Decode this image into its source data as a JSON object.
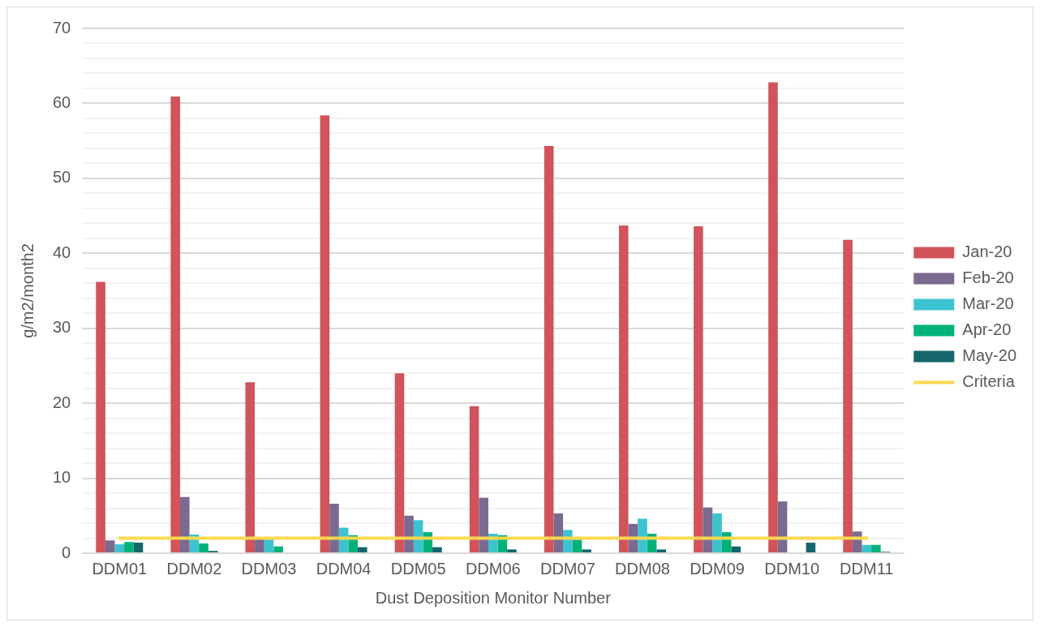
{
  "chart_data": {
    "type": "bar",
    "xlabel": "Dust Deposition Monitor Number",
    "ylabel": "g/m2/month2",
    "categories": [
      "DDM01",
      "DDM02",
      "DDM03",
      "DDM04",
      "DDM05",
      "DDM06",
      "DDM07",
      "DDM08",
      "DDM09",
      "DDM10",
      "DDM11"
    ],
    "series": [
      {
        "name": "Jan-20",
        "color": "#d0545a",
        "values": [
          36.2,
          60.9,
          22.8,
          58.4,
          24.0,
          19.6,
          54.3,
          43.7,
          43.6,
          62.8,
          41.8
        ]
      },
      {
        "name": "Feb-20",
        "color": "#7a6a90",
        "values": [
          1.7,
          7.5,
          1.9,
          6.6,
          5.0,
          7.4,
          5.3,
          3.9,
          6.1,
          6.9,
          2.9
        ]
      },
      {
        "name": "Mar-20",
        "color": "#3dc3cf",
        "values": [
          1.2,
          2.5,
          1.9,
          3.4,
          4.4,
          2.6,
          3.1,
          4.6,
          5.3,
          null,
          1.1
        ]
      },
      {
        "name": "Apr-20",
        "color": "#00b27a",
        "values": [
          1.5,
          1.3,
          0.9,
          2.4,
          2.8,
          2.4,
          1.8,
          2.6,
          2.8,
          null,
          1.1
        ]
      },
      {
        "name": "May-20",
        "color": "#14666c",
        "values": [
          1.4,
          0.3,
          null,
          0.8,
          0.8,
          0.5,
          0.5,
          0.5,
          0.9,
          1.4,
          0.2
        ]
      },
      {
        "name": "Criteria",
        "type": "line",
        "color": "#ffd84f",
        "marker": "none",
        "values": [
          2,
          2,
          2,
          2,
          2,
          2,
          2,
          2,
          2,
          2,
          2
        ]
      }
    ],
    "ylim": [
      0,
      70
    ],
    "yticks": [
      0,
      {
        "value": 2,
        "label": null
      },
      {
        "value": 4,
        "label": null
      },
      {
        "value": 6,
        "label": null
      },
      {
        "value": 8,
        "label": null
      },
      10,
      {
        "value": 12,
        "label": null
      },
      {
        "value": 14,
        "label": null
      },
      {
        "value": 16,
        "label": null
      },
      {
        "value": 18,
        "label": null
      },
      20,
      {
        "value": 22,
        "label": null
      },
      {
        "value": 24,
        "label": null
      },
      {
        "value": 26,
        "label": null
      },
      {
        "value": 28,
        "label": null
      },
      30,
      {
        "value": 32,
        "label": null
      },
      {
        "value": 34,
        "label": null
      },
      {
        "value": 36,
        "label": null
      },
      {
        "value": 38,
        "label": null
      },
      40,
      {
        "value": 42,
        "label": null
      },
      {
        "value": 44,
        "label": null
      },
      {
        "value": 46,
        "label": null
      },
      {
        "value": 48,
        "label": null
      },
      50,
      {
        "value": 52,
        "label": null
      },
      {
        "value": 54,
        "label": null
      },
      {
        "value": 56,
        "label": null
      },
      {
        "value": 58,
        "label": null
      },
      60,
      {
        "value": 62,
        "label": null
      },
      {
        "value": 64,
        "label": null
      },
      {
        "value": 66,
        "label": null
      },
      {
        "value": 68,
        "label": null
      },
      70
    ],
    "grid": "y",
    "legend": "right"
  }
}
